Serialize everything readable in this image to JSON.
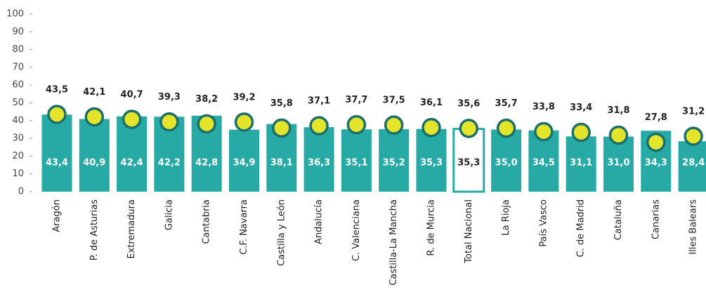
{
  "chart_data": {
    "type": "bar",
    "categories": [
      "Aragón",
      "P. de Asturias",
      "Extremadura",
      "Galicia",
      "Cantabria",
      "C.F. Navarra",
      "Castilla y León",
      "Andalucía",
      "C. Valenciana",
      "Castilla-La Mancha",
      "R. de Murcia",
      "Total Nacional",
      "La Rioja",
      "País Vasco",
      "C. de Madrid",
      "Cataluña",
      "Canarias",
      "Illes Balears"
    ],
    "series": [
      {
        "mark": "bar",
        "color": "#27aaa5",
        "colors": [
          "#27aaa5",
          "#27aaa5",
          "#27aaa5",
          "#27aaa5",
          "#27aaa5",
          "#27aaa5",
          "#27aaa5",
          "#27aaa5",
          "#27aaa5",
          "#27aaa5",
          "#27aaa5",
          "#ffffff",
          "#27aaa5",
          "#27aaa5",
          "#27aaa5",
          "#27aaa5",
          "#27aaa5",
          "#27aaa5"
        ],
        "values": [
          43.4,
          40.9,
          42.4,
          42.2,
          42.8,
          34.9,
          38.1,
          36.3,
          35.1,
          35.2,
          35.3,
          35.3,
          35.0,
          34.5,
          31.1,
          31.0,
          34.3,
          28.4
        ],
        "value_labels": [
          "43,4",
          "40,9",
          "42,4",
          "42,2",
          "42,8",
          "34,9",
          "38,1",
          "36,3",
          "35,1",
          "35,2",
          "35,3",
          "35,3",
          "35,0",
          "34,5",
          "31,1",
          "31,0",
          "34,3",
          "28,4"
        ]
      },
      {
        "mark": "dot",
        "color": "#e4e52a",
        "stroke": "#1b6f6b",
        "values": [
          43.5,
          42.1,
          40.7,
          39.3,
          38.2,
          39.2,
          35.8,
          37.1,
          37.7,
          37.5,
          36.1,
          35.6,
          35.7,
          33.8,
          33.4,
          31.8,
          27.8,
          31.2
        ],
        "value_labels": [
          "43,5",
          "42,1",
          "40,7",
          "39,3",
          "38,2",
          "39,2",
          "35,8",
          "37,1",
          "37,7",
          "37,5",
          "36,1",
          "35,6",
          "35,7",
          "33,8",
          "33,4",
          "31,8",
          "27,8",
          "31,2"
        ]
      }
    ],
    "ylim": [
      0,
      100
    ],
    "yticks": [
      0,
      10,
      20,
      30,
      40,
      50,
      60,
      70,
      80,
      90,
      100
    ]
  }
}
